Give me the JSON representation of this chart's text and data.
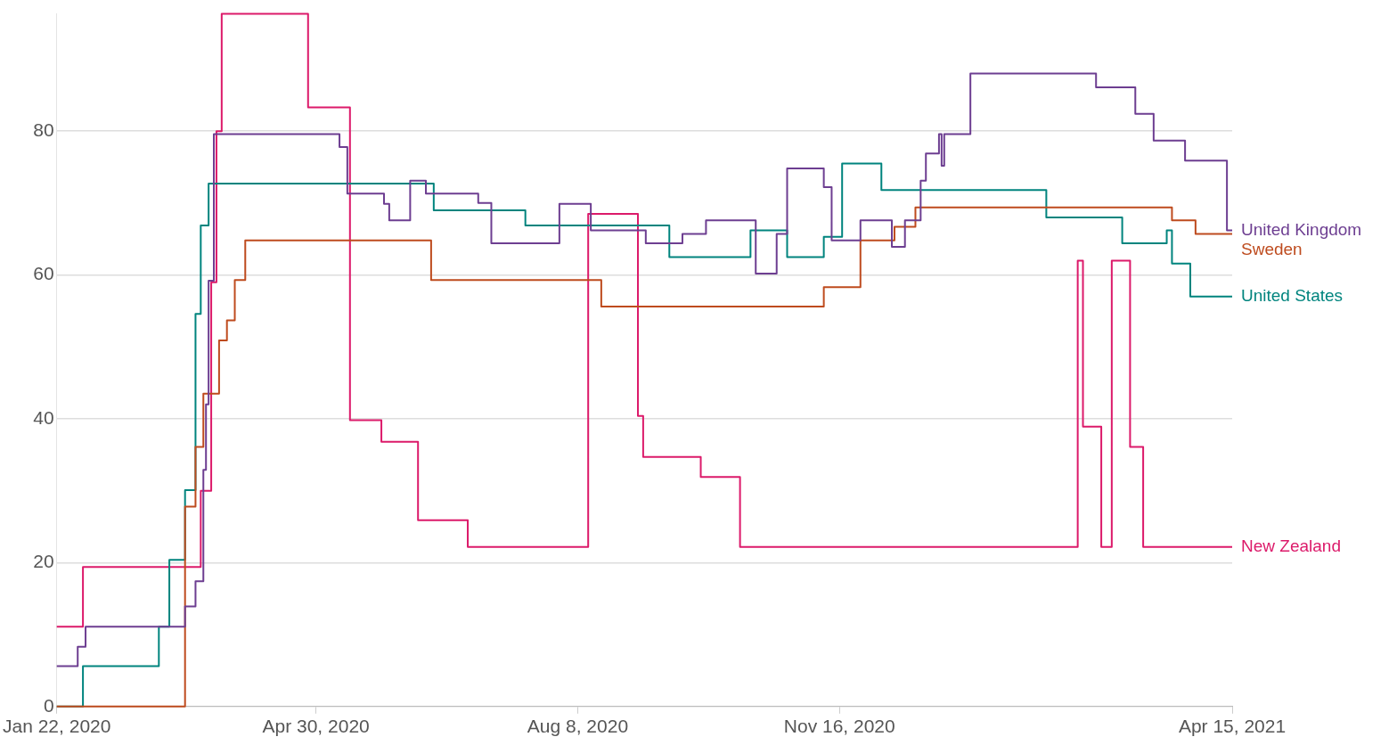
{
  "chart_data": {
    "type": "step",
    "xlim": [
      "2020-01-22",
      "2021-04-15"
    ],
    "xticks": [
      {
        "value": "2020-01-22",
        "label": "Jan 22, 2020"
      },
      {
        "value": "2020-04-30",
        "label": "Apr 30, 2020"
      },
      {
        "value": "2020-08-08",
        "label": "Aug 8, 2020"
      },
      {
        "value": "2020-11-16",
        "label": "Nov 16, 2020"
      },
      {
        "value": "2021-04-15",
        "label": "Apr 15, 2021"
      }
    ],
    "ylim": [
      0,
      96.3
    ],
    "yticks": [
      0,
      20,
      40,
      60,
      80
    ],
    "grid": "y",
    "legend": "right",
    "line_style": "solid",
    "series": [
      {
        "name": "United Kingdom",
        "color": "#6d3e91",
        "x": [
          "2020-01-22",
          "2020-01-30",
          "2020-02-02",
          "2020-03-11",
          "2020-03-15",
          "2020-03-18",
          "2020-03-19",
          "2020-03-20",
          "2020-03-22",
          "2020-05-09",
          "2020-05-12",
          "2020-05-26",
          "2020-05-28",
          "2020-06-05",
          "2020-06-11",
          "2020-07-01",
          "2020-07-06",
          "2020-08-01",
          "2020-08-13",
          "2020-09-03",
          "2020-09-17",
          "2020-09-26",
          "2020-10-15",
          "2020-10-23",
          "2020-10-27",
          "2020-11-10",
          "2020-11-13",
          "2020-11-24",
          "2020-12-06",
          "2020-12-11",
          "2020-12-17",
          "2020-12-19",
          "2020-12-24",
          "2020-12-25",
          "2020-12-26",
          "2021-01-05",
          "2021-02-22",
          "2021-03-09",
          "2021-03-16",
          "2021-03-28",
          "2021-04-13",
          "2021-04-15"
        ],
        "values": [
          5.6,
          8.3,
          11.1,
          13.9,
          17.4,
          32.9,
          42,
          59.2,
          79.6,
          77.8,
          71.3,
          69.9,
          67.6,
          73.1,
          71.3,
          70,
          64.4,
          69.9,
          66.2,
          64.4,
          65.7,
          67.6,
          60.2,
          65.7,
          74.8,
          72.2,
          64.8,
          67.6,
          63.9,
          67.6,
          73.1,
          76.9,
          79.6,
          75.2,
          79.6,
          88,
          86.1,
          82.4,
          78.7,
          75.9,
          66.2,
          66.2
        ]
      },
      {
        "name": "Sweden",
        "color": "#be4b1e",
        "x": [
          "2020-01-22",
          "2020-03-11",
          "2020-03-15",
          "2020-03-18",
          "2020-03-24",
          "2020-03-27",
          "2020-03-30",
          "2020-04-03",
          "2020-06-13",
          "2020-08-17",
          "2020-11-10",
          "2020-11-24",
          "2020-12-07",
          "2020-12-15",
          "2021-03-23",
          "2021-04-01",
          "2021-04-15"
        ],
        "values": [
          0,
          27.8,
          36.1,
          43.5,
          50.9,
          53.7,
          59.3,
          64.8,
          59.3,
          55.6,
          58.3,
          64.8,
          66.7,
          69.4,
          67.6,
          65.7,
          65.7
        ]
      },
      {
        "name": "United States",
        "color": "#00847e",
        "x": [
          "2020-01-22",
          "2020-02-01",
          "2020-03-01",
          "2020-03-05",
          "2020-03-11",
          "2020-03-15",
          "2020-03-17",
          "2020-03-20",
          "2020-06-14",
          "2020-07-19",
          "2020-09-12",
          "2020-10-13",
          "2020-10-27",
          "2020-11-10",
          "2020-11-17",
          "2020-12-02",
          "2021-02-03",
          "2021-03-04",
          "2021-03-21",
          "2021-03-23",
          "2021-03-30",
          "2021-04-15"
        ],
        "values": [
          0,
          5.6,
          11.1,
          20.4,
          30.1,
          54.6,
          66.9,
          72.7,
          69,
          66.9,
          62.5,
          66.2,
          62.5,
          65.3,
          75.5,
          71.8,
          68,
          64.4,
          66.2,
          61.6,
          57,
          57
        ]
      },
      {
        "name": "New Zealand",
        "color": "#dc1a6a",
        "x": [
          "2020-01-22",
          "2020-02-01",
          "2020-03-17",
          "2020-03-21",
          "2020-03-23",
          "2020-03-25",
          "2020-04-27",
          "2020-05-13",
          "2020-05-25",
          "2020-06-08",
          "2020-06-27",
          "2020-08-12",
          "2020-08-31",
          "2020-09-02",
          "2020-09-24",
          "2020-10-09",
          "2021-02-15",
          "2021-02-17",
          "2021-02-24",
          "2021-02-28",
          "2021-03-07",
          "2021-03-12",
          "2021-04-15"
        ],
        "values": [
          11.1,
          19.4,
          30,
          59,
          80,
          96.3,
          83.3,
          39.8,
          36.8,
          25.9,
          22.2,
          68.5,
          40.4,
          34.7,
          31.9,
          22.2,
          62,
          38.9,
          22.2,
          62,
          36.1,
          22.2,
          22.2
        ]
      }
    ]
  }
}
